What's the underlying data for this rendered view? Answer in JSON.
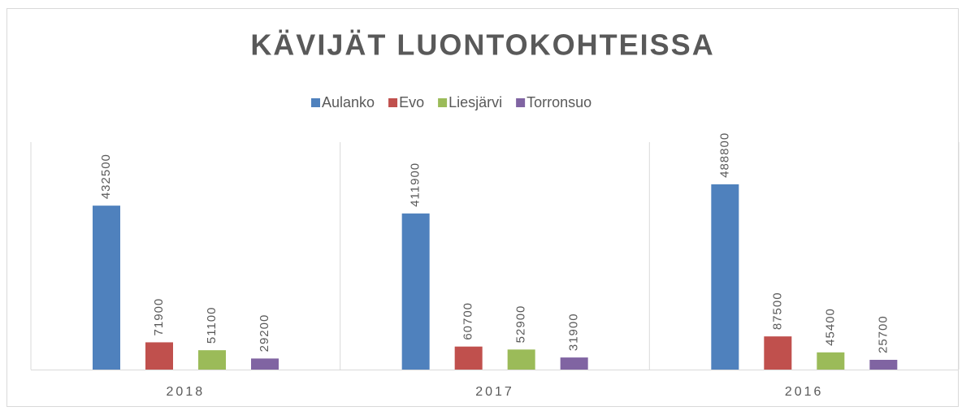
{
  "chart_data": {
    "type": "bar",
    "title": "KÄVIJÄT LUONTOKOHTEISSA",
    "categories": [
      "2018",
      "2017",
      "2016"
    ],
    "series": [
      {
        "name": "Aulanko",
        "color": "#4f81bd",
        "values": [
          432500,
          411900,
          488800
        ]
      },
      {
        "name": "Evo",
        "color": "#c0504d",
        "values": [
          71900,
          60700,
          87500
        ]
      },
      {
        "name": "Liesjärvi",
        "color": "#9bbb59",
        "values": [
          51100,
          52900,
          45400
        ]
      },
      {
        "name": "Torronsuo",
        "color": "#8064a2",
        "values": [
          29200,
          31900,
          25700
        ]
      }
    ],
    "ylim": [
      0,
      600000
    ],
    "legend": "top"
  }
}
